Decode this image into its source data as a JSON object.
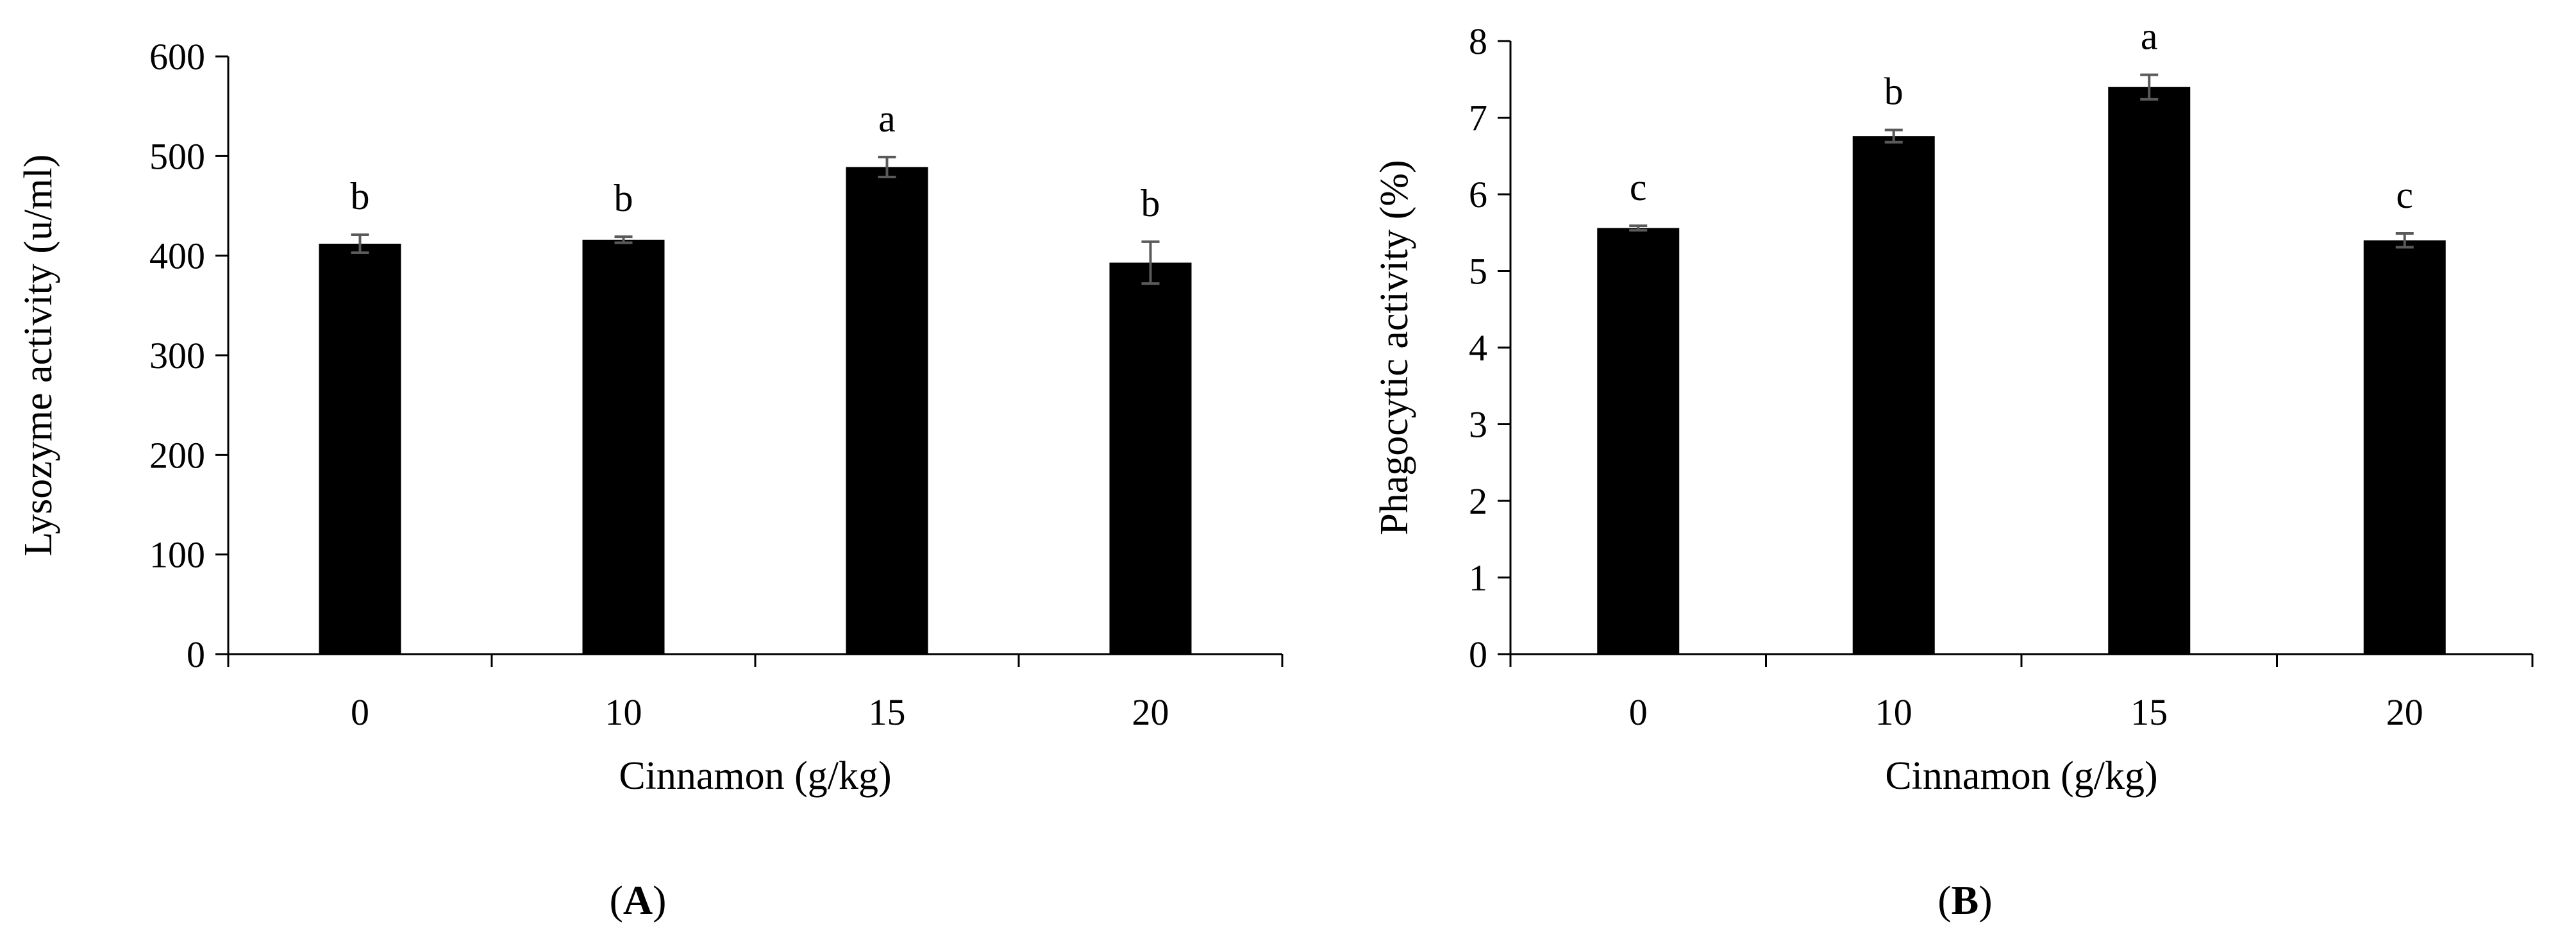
{
  "chart_data": [
    {
      "type": "bar",
      "panel_label": "A",
      "categories": [
        "0",
        "10",
        "15",
        "20"
      ],
      "values": [
        412,
        416,
        489,
        393
      ],
      "errors": [
        9,
        3,
        10,
        21
      ],
      "significance": [
        "b",
        "b",
        "a",
        "b"
      ],
      "xlabel": "Cinnamon (g/kg)",
      "ylabel": "Lysozyme activity  (u/ml)",
      "ylim": [
        0,
        600
      ],
      "yticks": [
        "0",
        "100",
        "200",
        "300",
        "400",
        "500",
        "600"
      ],
      "bar_color": "#000000",
      "grid": false
    },
    {
      "type": "bar",
      "panel_label": "B",
      "categories": [
        "0",
        "10",
        "15",
        "20"
      ],
      "values": [
        5.56,
        6.76,
        7.4,
        5.4
      ],
      "errors": [
        0.03,
        0.08,
        0.16,
        0.09
      ],
      "significance": [
        "c",
        "b",
        "a",
        "c"
      ],
      "xlabel": "Cinnamon (g/kg)",
      "ylabel": "Phagocytic activity  (%)",
      "ylim": [
        0,
        8
      ],
      "yticks": [
        "0",
        "1",
        "2",
        "3",
        "4",
        "5",
        "6",
        "7",
        "8"
      ],
      "bar_color": "#000000",
      "grid": false
    }
  ]
}
